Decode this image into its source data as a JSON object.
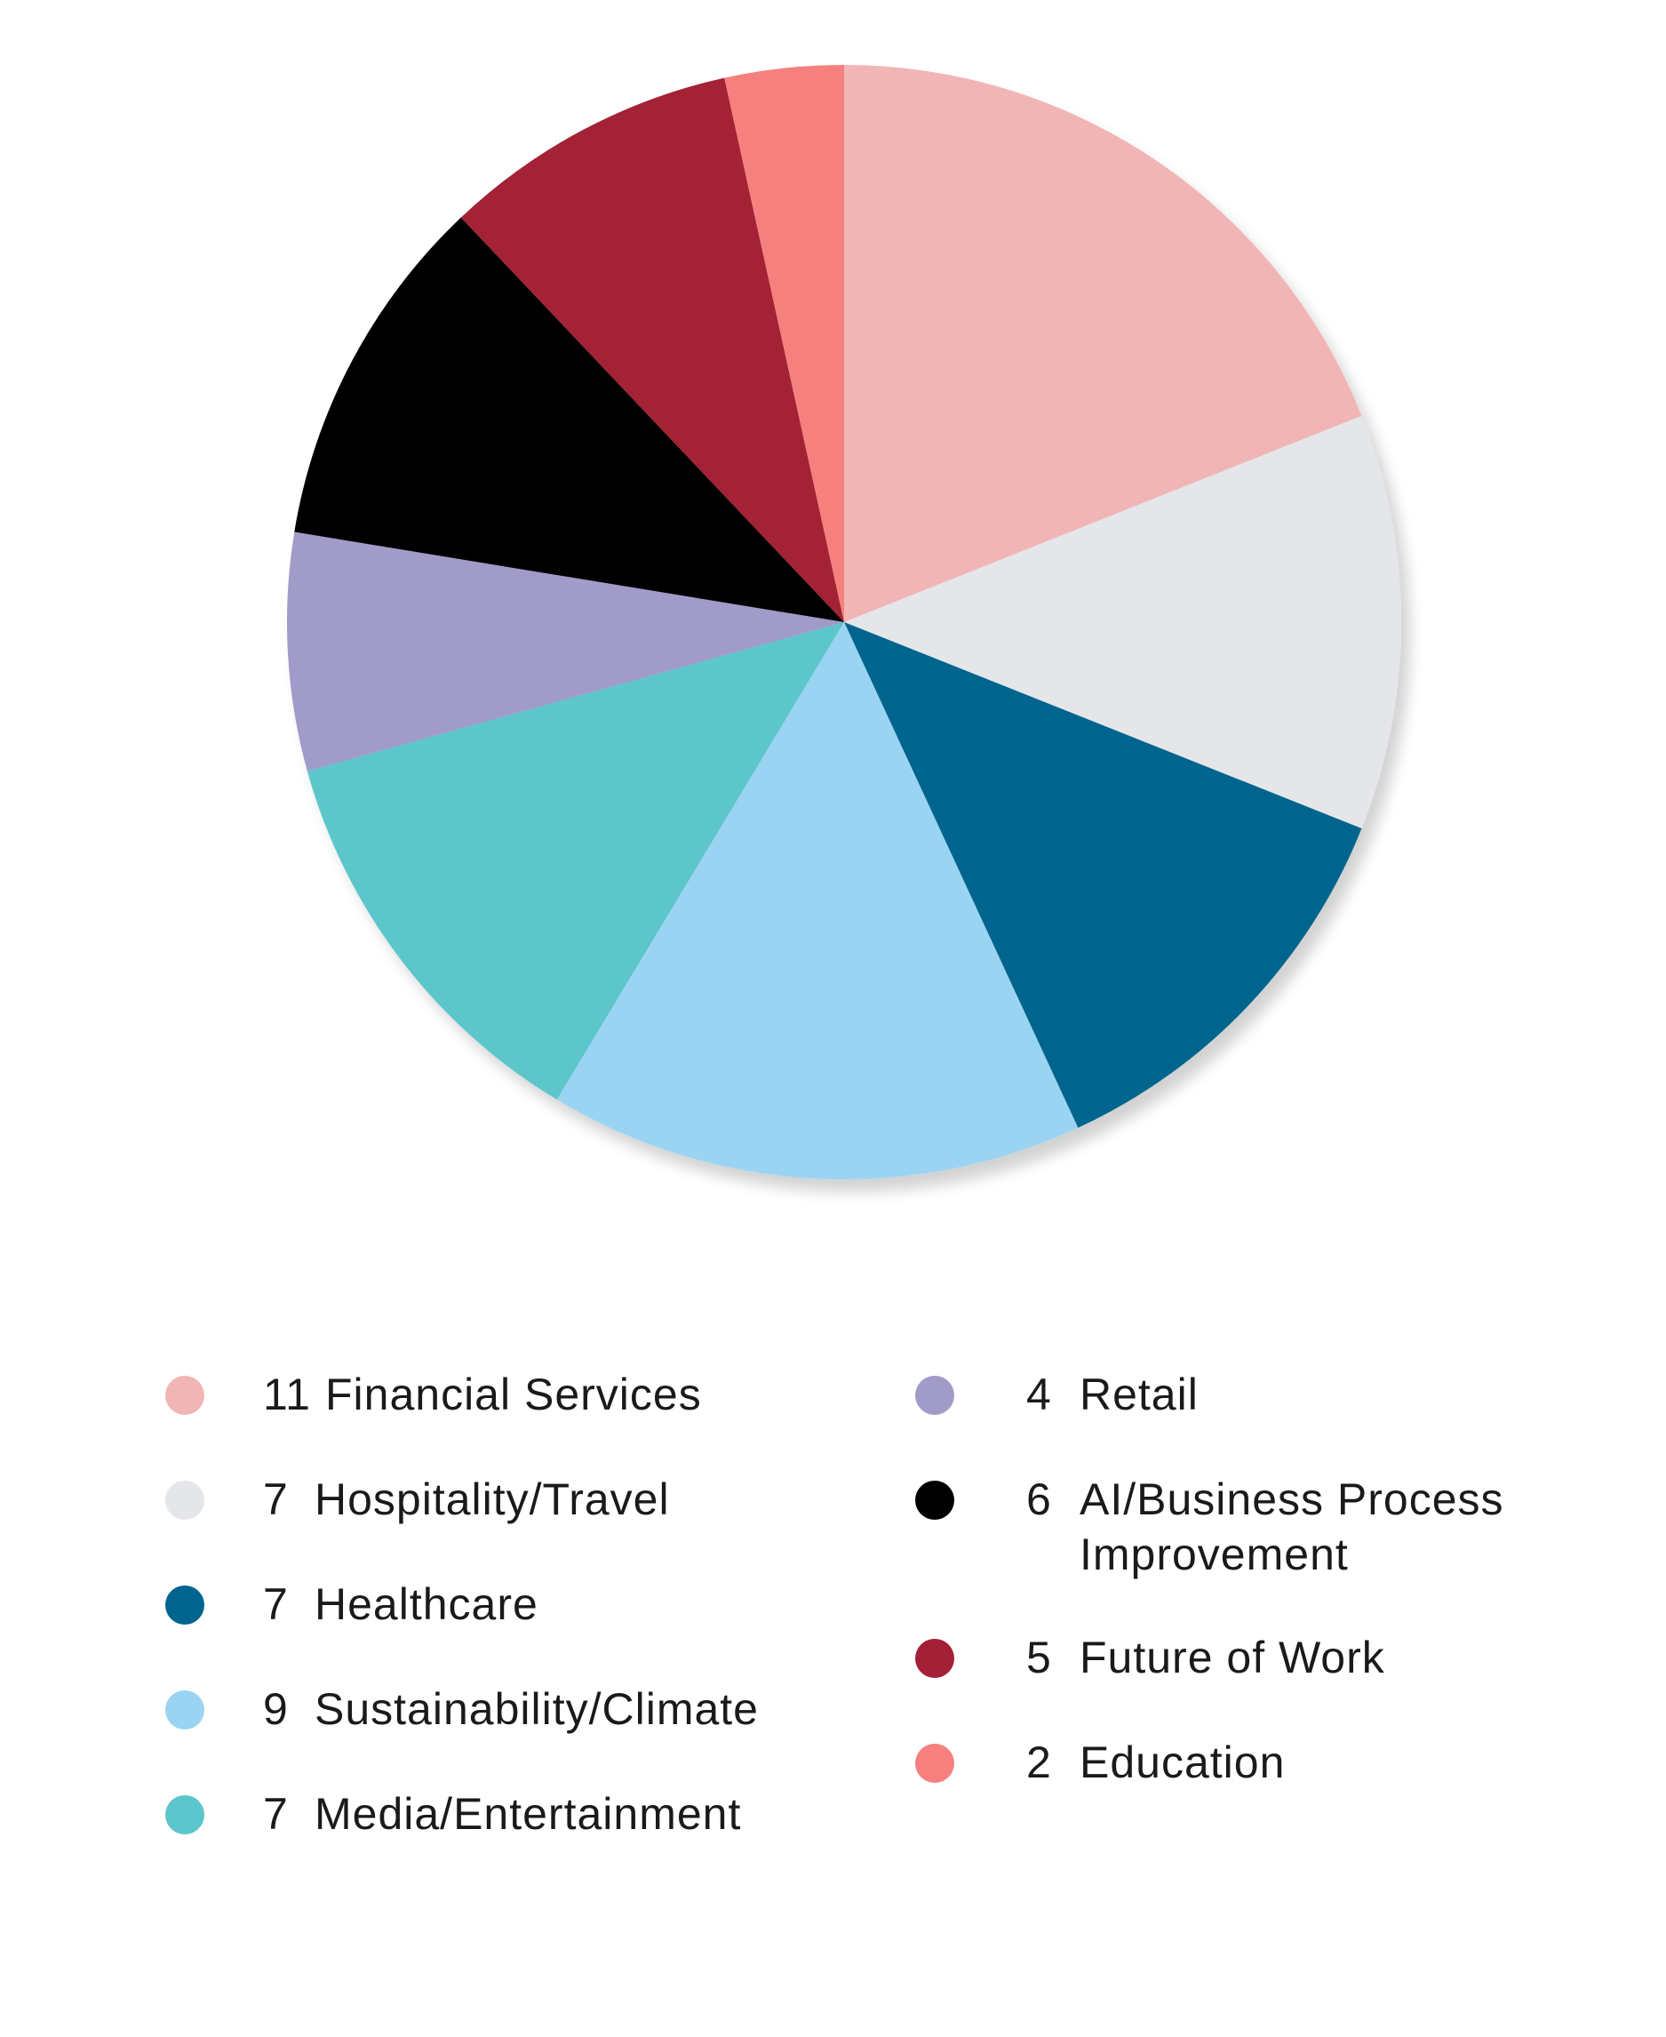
{
  "chart_data": {
    "type": "pie",
    "title": "",
    "start": "12 o'clock",
    "direction": "clockwise",
    "legend_placement": "bottom",
    "slices": [
      {
        "label": "Financial Services",
        "value": 11,
        "color": "#F2B5B6"
      },
      {
        "label": "Hospitality/Travel",
        "value": 7,
        "color": "#E4E6E9"
      },
      {
        "label": "Healthcare",
        "value": 7,
        "color": "#00658E"
      },
      {
        "label": "Sustainability/Climate",
        "value": 9,
        "color": "#9AD4F2"
      },
      {
        "label": "Media/Entertainment",
        "value": 7,
        "color": "#5BC6CB"
      },
      {
        "label": "Retail",
        "value": 4,
        "color": "#A09BC9"
      },
      {
        "label": "AI/Business Process Improvement",
        "value": 6,
        "color": "#000000"
      },
      {
        "label": "Future of Work",
        "value": 5,
        "color": "#A32036"
      },
      {
        "label": "Education",
        "value": 2,
        "color": "#F5807E"
      }
    ]
  },
  "legend": {
    "left": [
      {
        "value": "11",
        "label": "Financial Services",
        "color": "#F2B5B6"
      },
      {
        "value": "7",
        "label": "Hospitality/Travel",
        "color": "#E4E6E9"
      },
      {
        "value": "7",
        "label": "Healthcare",
        "color": "#00658E"
      },
      {
        "value": "9",
        "label": "Sustainability/Climate",
        "color": "#9AD4F2"
      },
      {
        "value": "7",
        "label": "Media/Entertainment",
        "color": "#5BC6CB"
      }
    ],
    "right": [
      {
        "value": "4",
        "label": "Retail",
        "color": "#A09BC9"
      },
      {
        "value": "6",
        "label": "AI/Business Process",
        "label2": "Improvement",
        "color": "#000000"
      },
      {
        "value": "5",
        "label": "Future of Work",
        "color": "#A32036"
      },
      {
        "value": "2",
        "label": "Education",
        "color": "#F5807E"
      }
    ]
  }
}
